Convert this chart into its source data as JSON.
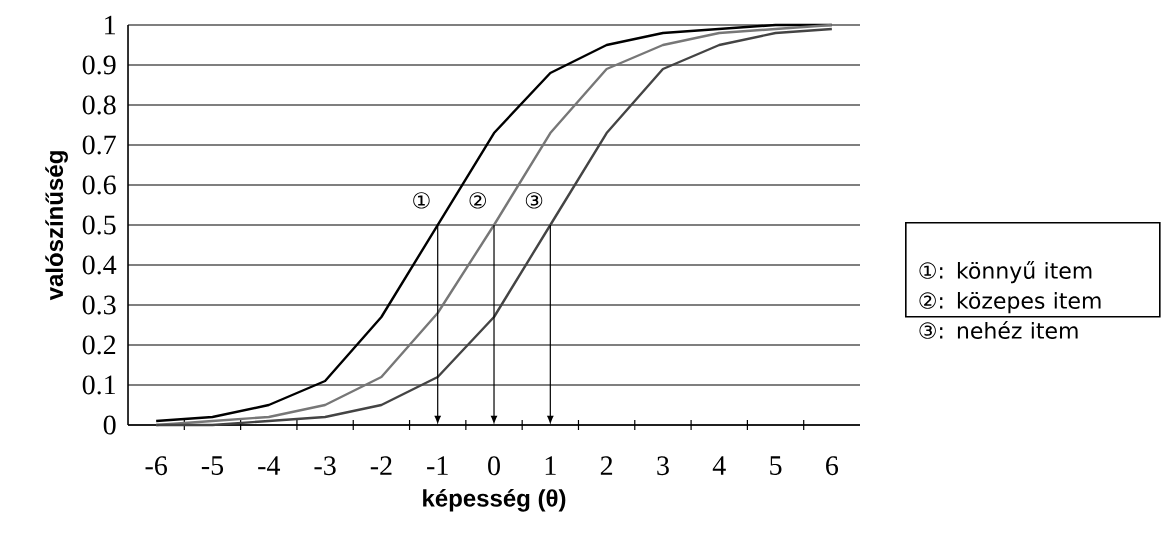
{
  "chart_data": {
    "type": "line",
    "xlabel": "képesség (θ)",
    "ylabel": "valószínűség",
    "x": [
      -6,
      -5,
      -4,
      -3,
      -2,
      -1,
      0,
      1,
      2,
      3,
      4,
      5,
      6
    ],
    "series": [
      {
        "color": "#000000",
        "values": [
          0.01,
          0.02,
          0.05,
          0.11,
          0.27,
          0.5,
          0.73,
          0.88,
          0.95,
          0.98,
          0.99,
          1.0,
          1.0
        ]
      },
      {
        "color": "#777777",
        "values": [
          0.0,
          0.01,
          0.02,
          0.05,
          0.12,
          0.28,
          0.5,
          0.73,
          0.89,
          0.95,
          0.98,
          0.99,
          1.0
        ]
      },
      {
        "color": "#444444",
        "values": [
          0.0,
          0.0,
          0.01,
          0.02,
          0.05,
          0.12,
          0.27,
          0.5,
          0.73,
          0.89,
          0.95,
          0.98,
          0.99
        ]
      }
    ],
    "xlim": [
      -6.5,
      6.5
    ],
    "xticks": [
      -6,
      -5,
      -4,
      -3,
      -2,
      -1,
      0,
      1,
      2,
      3,
      4,
      5,
      6
    ],
    "ylim": [
      0,
      1
    ],
    "yticks": [
      0,
      0.1,
      0.2,
      0.3,
      0.4,
      0.5,
      0.6,
      0.7,
      0.8,
      0.9,
      1
    ],
    "grid": "y",
    "annotations": [
      {
        "text": "①",
        "x": -1,
        "y": 0.5
      },
      {
        "text": "②",
        "x": 0,
        "y": 0.5
      },
      {
        "text": "③",
        "x": 1,
        "y": 0.5
      },
      "①: könnyű item",
      "②: közepes item",
      "③: nehéz  item"
    ]
  }
}
